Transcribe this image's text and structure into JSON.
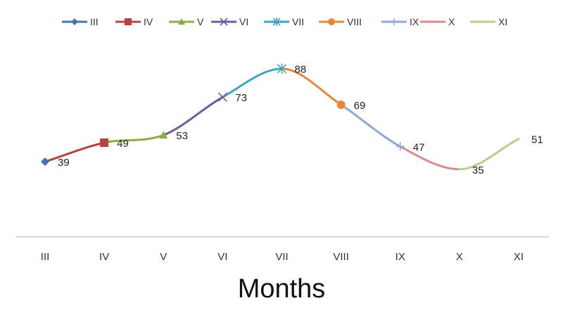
{
  "chart_data": {
    "type": "line",
    "title": "",
    "xlabel": "Months",
    "ylabel": "",
    "categories": [
      "III",
      "IV",
      "V",
      "VI",
      "VII",
      "VIII",
      "IX",
      "X",
      "XI"
    ],
    "values": [
      39,
      49,
      53,
      73,
      88,
      69,
      47,
      35,
      51
    ],
    "data_labels": [
      "39",
      "49",
      "53",
      "73",
      "88",
      "69",
      "47",
      "35",
      "51"
    ],
    "series": [
      {
        "name": "III",
        "color": "#4573b6",
        "marker": "diamond"
      },
      {
        "name": "IV",
        "color": "#b54440",
        "marker": "square"
      },
      {
        "name": "V",
        "color": "#8bad45",
        "marker": "triangle"
      },
      {
        "name": "VI",
        "color": "#7358a0",
        "marker": "x"
      },
      {
        "name": "VII",
        "color": "#3fa6c0",
        "marker": "star"
      },
      {
        "name": "VIII",
        "color": "#e5873a",
        "marker": "circle"
      },
      {
        "name": "IX",
        "color": "#8ea9d6",
        "marker": "plus"
      },
      {
        "name": "X",
        "color": "#d88b88",
        "marker": "none"
      },
      {
        "name": "XI",
        "color": "#b5cf86",
        "marker": "none"
      }
    ],
    "grid": false,
    "legend": "top",
    "smooth": true
  }
}
